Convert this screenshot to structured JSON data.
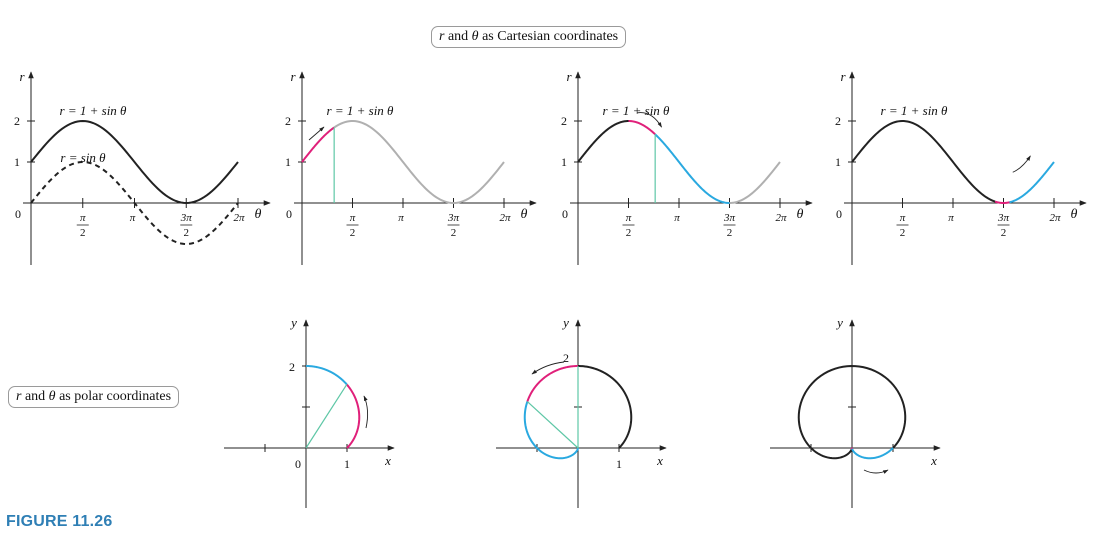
{
  "labels": {
    "cartesian_box": {
      "r": "r",
      "and": " and ",
      "theta": "θ",
      "rest": " as Cartesian coordinates"
    },
    "polar_box": {
      "r": "r",
      "and": " and ",
      "theta": "θ",
      "rest": " as polar coordinates"
    },
    "figure_number": "FIGURE 11.26"
  },
  "axis": {
    "r": "r",
    "theta": "θ",
    "x": "x",
    "y": "y",
    "tick_0": "0",
    "tick_1": "1",
    "tick_2": "2",
    "pi": "π",
    "pi_over_2_num": "π",
    "pi_over_2_den": "2",
    "three_pi_over_2_num": "3π",
    "three_pi_over_2_den": "2",
    "two_pi": "2π"
  },
  "equations": {
    "main": "r = 1 + sin θ",
    "secondary": "r = sin θ"
  },
  "colors": {
    "curve": "#222222",
    "gray": "#b0b0b0",
    "magenta": "#e0207a",
    "cyan": "#2aa9e0",
    "teal": "#5ec7a6",
    "accent": "#2f7fb5"
  },
  "chart_data": {
    "type": "line",
    "function": "r = 1 + sin θ",
    "secondary_function": "r = sin θ",
    "theta_range": [
      0,
      6.283185307
    ],
    "r_range": [
      0,
      2
    ],
    "stages": [
      {
        "theta_end": 6.283185307,
        "highlight": "full curve"
      },
      {
        "theta_end": 1.0,
        "highlight": "magenta 0 to ~π/3, gray rest"
      },
      {
        "theta_end": 2.4,
        "highlight": "magenta to π/2, cyan to 3π/2"
      },
      {
        "theta_end": 5.8,
        "highlight": "magenta near 3π/2, cyan beyond"
      }
    ]
  }
}
